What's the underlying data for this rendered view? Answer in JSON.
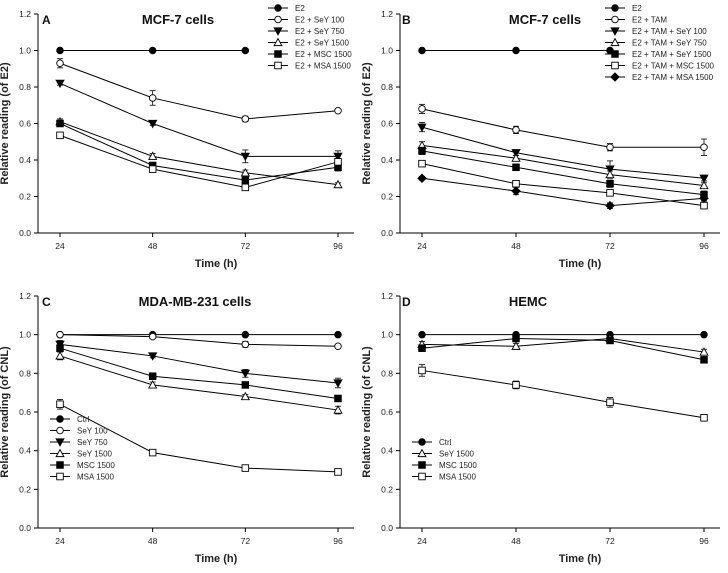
{
  "chart_data": [
    {
      "type": "line",
      "panel": "A",
      "title": "MCF-7 cells",
      "xlabel": "Time (h)",
      "ylabel": "Relative reading (of E2)",
      "x": [
        24,
        48,
        72,
        96
      ],
      "xticks": [
        "24",
        "48",
        "72",
        "96"
      ],
      "ylim": [
        0,
        1.2
      ],
      "yticks": [
        "0.0",
        "0.2",
        "0.4",
        "0.6",
        "0.8",
        "1.0",
        "1.2"
      ],
      "legend_position": "top-right",
      "series": [
        {
          "name": "E2",
          "marker": "filled-circle",
          "values": [
            1.0,
            1.0,
            1.0,
            null
          ],
          "err": [
            0,
            0,
            0,
            null
          ]
        },
        {
          "name": "E2 + SeY 100",
          "marker": "open-circle",
          "values": [
            0.93,
            0.74,
            0.625,
            0.67
          ],
          "err": [
            0.025,
            0.04,
            0.015,
            0.01
          ]
        },
        {
          "name": "E2 + SeY 750",
          "marker": "filled-triangle",
          "values": [
            0.82,
            0.6,
            0.42,
            0.42
          ],
          "err": [
            0.01,
            0.01,
            0.035,
            0.03
          ]
        },
        {
          "name": "E2 + SeY 1500",
          "marker": "open-triangle",
          "values": [
            0.61,
            0.42,
            0.33,
            0.265
          ],
          "err": [
            0.015,
            0.015,
            0.015,
            0.01
          ]
        },
        {
          "name": "E2 + MSC 1500",
          "marker": "filled-square",
          "values": [
            0.6,
            0.37,
            0.29,
            0.36
          ],
          "err": [
            0.015,
            0.015,
            0.02,
            0.02
          ]
        },
        {
          "name": "E2 + MSA 1500",
          "marker": "open-square",
          "values": [
            0.535,
            0.35,
            0.25,
            0.39
          ],
          "err": [
            0.01,
            0.015,
            0.015,
            0.02
          ]
        }
      ]
    },
    {
      "type": "line",
      "panel": "B",
      "title": "MCF-7 cells",
      "xlabel": "Time (h)",
      "ylabel": "Relative reading (of E2)",
      "x": [
        24,
        48,
        72,
        96
      ],
      "xticks": [
        "24",
        "48",
        "72",
        "96"
      ],
      "ylim": [
        0,
        1.2
      ],
      "yticks": [
        "0.0",
        "0.2",
        "0.4",
        "0.6",
        "0.8",
        "1.0",
        "1.2"
      ],
      "legend_position": "top-right",
      "series": [
        {
          "name": "E2",
          "marker": "filled-circle",
          "values": [
            1.0,
            1.0,
            1.0,
            null
          ],
          "err": [
            0,
            0,
            0,
            null
          ]
        },
        {
          "name": "E2 + TAM",
          "marker": "open-circle",
          "values": [
            0.68,
            0.565,
            0.47,
            0.47
          ],
          "err": [
            0.025,
            0.02,
            0.02,
            0.045
          ]
        },
        {
          "name": "E2 + TAM + SeY 100",
          "marker": "filled-triangle",
          "values": [
            0.58,
            0.44,
            0.35,
            0.3
          ],
          "err": [
            0.025,
            0.015,
            0.045,
            0.015
          ]
        },
        {
          "name": "E2 + TAM + SeY 750",
          "marker": "open-triangle",
          "values": [
            0.48,
            0.41,
            0.32,
            0.26
          ],
          "err": [
            0.02,
            0.015,
            0.02,
            0.015
          ]
        },
        {
          "name": "E2 + TAM + SeY 1500",
          "marker": "filled-square",
          "values": [
            0.45,
            0.36,
            0.27,
            0.21
          ],
          "err": [
            0.02,
            0.015,
            0.02,
            0.02
          ]
        },
        {
          "name": "E2 + TAM + MSC 1500",
          "marker": "open-square",
          "values": [
            0.38,
            0.27,
            0.22,
            0.15
          ],
          "err": [
            0.01,
            0.015,
            0.015,
            0.015
          ]
        },
        {
          "name": "E2 + TAM + MSA 1500",
          "marker": "filled-diamond",
          "values": [
            0.3,
            0.23,
            0.15,
            0.19
          ],
          "err": [
            0.01,
            0.02,
            0.015,
            0.015
          ]
        }
      ]
    },
    {
      "type": "line",
      "panel": "C",
      "title": "MDA-MB-231 cells",
      "xlabel": "Time (h)",
      "ylabel": "Relative reading (of CNL)",
      "x": [
        24,
        48,
        72,
        96
      ],
      "xticks": [
        "24",
        "48",
        "72",
        "96"
      ],
      "ylim": [
        0,
        1.2
      ],
      "yticks": [
        "0.0",
        "0.2",
        "0.4",
        "0.6",
        "0.8",
        "1.0",
        "1.2"
      ],
      "legend_position": "bottom-left",
      "series": [
        {
          "name": "Ctrl",
          "marker": "filled-circle",
          "values": [
            1.0,
            1.0,
            1.0,
            1.0
          ],
          "err": [
            0,
            0,
            0,
            0
          ]
        },
        {
          "name": "SeY 100",
          "marker": "open-circle",
          "values": [
            1.0,
            0.99,
            0.95,
            0.94
          ],
          "err": [
            0.01,
            0.01,
            0.015,
            0.01
          ]
        },
        {
          "name": "SeY 750",
          "marker": "filled-triangle",
          "values": [
            0.95,
            0.89,
            0.8,
            0.75
          ],
          "err": [
            0.02,
            0.01,
            0.02,
            0.025
          ]
        },
        {
          "name": "SeY 1500",
          "marker": "open-triangle",
          "values": [
            0.89,
            0.74,
            0.68,
            0.61
          ],
          "err": [
            0.02,
            0.015,
            0.01,
            0.02
          ]
        },
        {
          "name": "MSC 1500",
          "marker": "filled-square",
          "values": [
            0.93,
            0.785,
            0.74,
            0.67
          ],
          "err": [
            0.015,
            0.015,
            0.01,
            0.01
          ]
        },
        {
          "name": "MSA 1500",
          "marker": "open-square",
          "values": [
            0.64,
            0.39,
            0.31,
            0.29
          ],
          "err": [
            0.025,
            0.01,
            0.01,
            0.01
          ]
        }
      ]
    },
    {
      "type": "line",
      "panel": "D",
      "title": "HEMC",
      "xlabel": "Time (h)",
      "ylabel": "Relative reading (of CNL)",
      "x": [
        24,
        48,
        72,
        96
      ],
      "xticks": [
        "24",
        "48",
        "72",
        "96"
      ],
      "ylim": [
        0,
        1.2
      ],
      "yticks": [
        "0.0",
        "0.2",
        "0.4",
        "0.6",
        "0.8",
        "1.0",
        "1.2"
      ],
      "legend_position": "bottom-left",
      "series": [
        {
          "name": "Ctrl",
          "marker": "filled-circle",
          "values": [
            1.0,
            1.0,
            1.0,
            1.0
          ],
          "err": [
            0,
            0,
            0,
            0
          ]
        },
        {
          "name": "SeY 1500",
          "marker": "open-triangle",
          "values": [
            0.95,
            0.94,
            0.98,
            0.91
          ],
          "err": [
            0.015,
            0.015,
            0.01,
            0.015
          ]
        },
        {
          "name": "MSC 1500",
          "marker": "filled-square",
          "values": [
            0.93,
            0.98,
            0.97,
            0.87
          ],
          "err": [
            0.015,
            0.01,
            0.01,
            0.01
          ]
        },
        {
          "name": "MSA 1500",
          "marker": "open-square",
          "values": [
            0.815,
            0.74,
            0.65,
            0.57
          ],
          "err": [
            0.03,
            0.02,
            0.025,
            0.01
          ]
        }
      ]
    }
  ]
}
